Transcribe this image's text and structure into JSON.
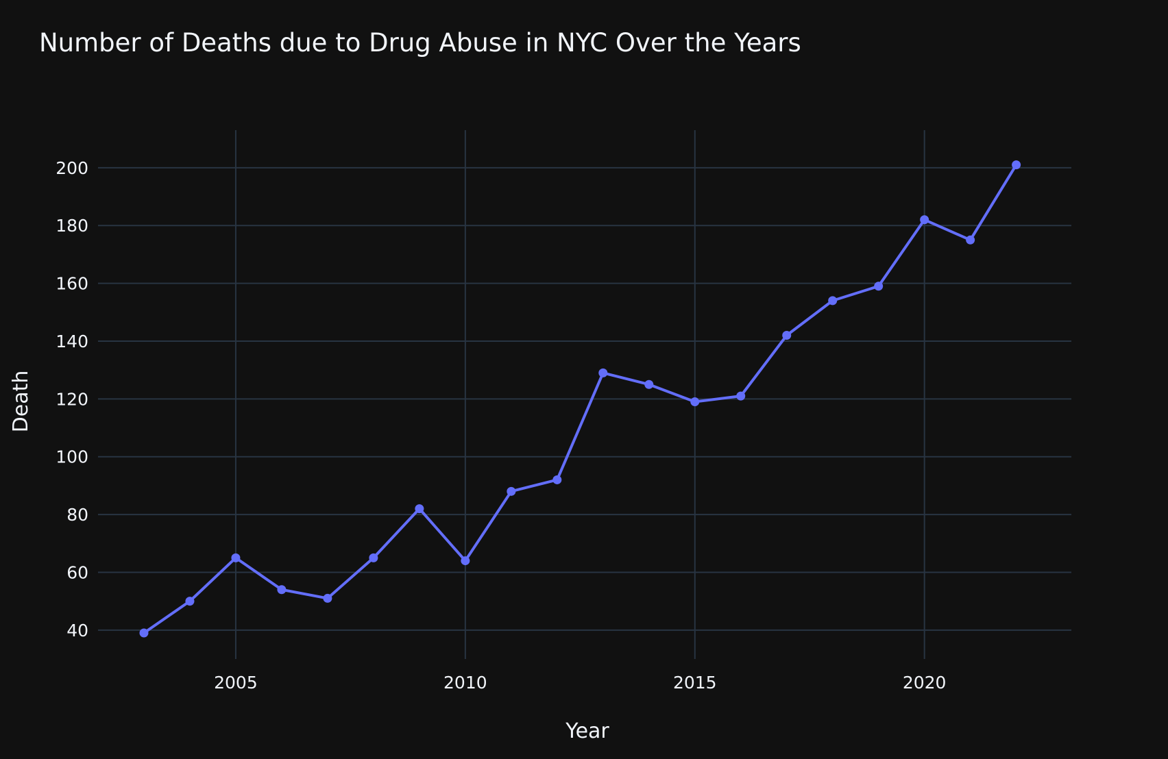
{
  "chart_data": {
    "type": "line",
    "title": "Number of Deaths due to Drug Abuse in NYC Over the Years",
    "xlabel": "Year",
    "ylabel": "Death",
    "xlim": [
      2002.0,
      2023.2
    ],
    "ylim": [
      30,
      213
    ],
    "xticks": [
      2005,
      2010,
      2015,
      2020
    ],
    "yticks": [
      40,
      60,
      80,
      100,
      120,
      140,
      160,
      180,
      200
    ],
    "grid": true,
    "legend": "none",
    "series": [
      {
        "x": [
          2003,
          2004,
          2005,
          2006,
          2007,
          2008,
          2009,
          2010,
          2011,
          2012,
          2013,
          2014,
          2015,
          2016,
          2017,
          2018,
          2019,
          2020,
          2021,
          2022
        ],
        "values": [
          39,
          50,
          65,
          54,
          51,
          65,
          82,
          64,
          88,
          92,
          129,
          125,
          119,
          121,
          142,
          154,
          159,
          182,
          175,
          201
        ],
        "color": "#636efa",
        "mode": "lines+markers"
      }
    ]
  },
  "colors": {
    "background": "#111111",
    "grid": "#283442",
    "text": "#f2f5fa",
    "series": "#636efa"
  }
}
